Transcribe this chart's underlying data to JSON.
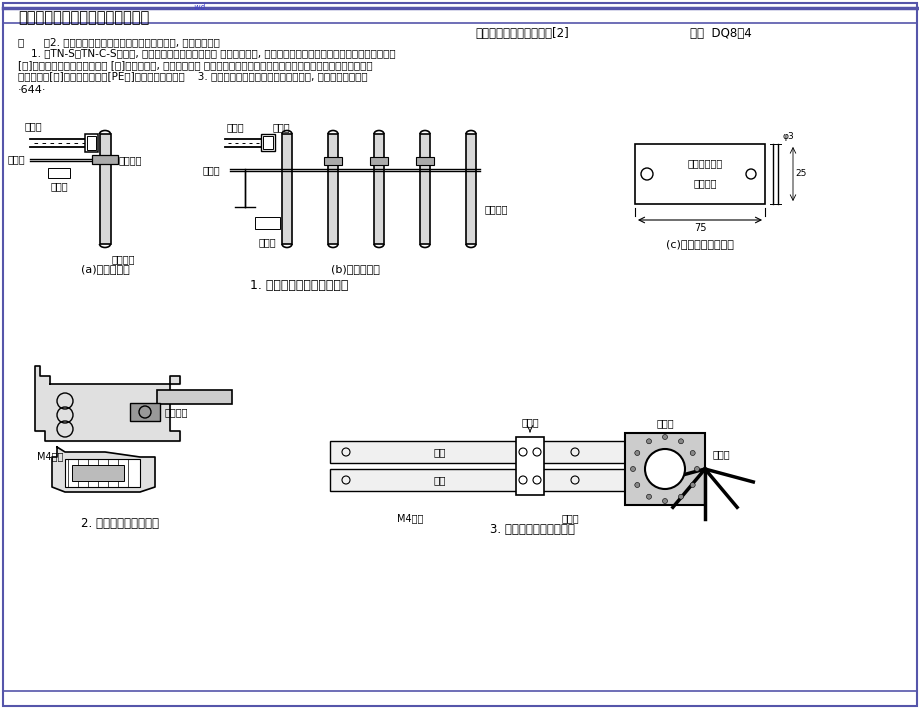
{
  "title_header": "防雷及接地装置设计施工安装图集",
  "header_link": "...wd...",
  "fig_name_label": "图名电线管接地安装方法[2]",
  "fig_number_label": "图号  DQ8－4",
  "desc1": "说      明2. 设备管线接地可采用铜带、钢带作接地线, 也可采用配管",
  "desc2": "    1. 在TN-S、TN-C-S系统中, 当金属电线保护管、金属盒 到设备管线处, 内穿接地线进展接地。可用塑料绑扎带将接地告",
  "desc3": "[箱]、塑料电线保护管、塑料盒 [箱]混合使用时, 金属电线保护 示牌安装在接地线上。接地警告性告示牌请按设计要求选用。",
  "desc4": "管和金属盒[箱]必须与保护地线[PE线]有可靠的电气连接    3. 接地警告性告示牌由橙黄色塑料制成, 上印有红色字体。",
  "desc5": "·644·",
  "caption_a": "(a)单管跨接地",
  "caption_b": "(b)多管跨接地",
  "caption_c": "(c)接地警告性告示牌",
  "caption_1": "1. 金属管线跨接地安装方法",
  "caption_2": "2. 接线盒接地安装方法",
  "caption_3": "3. 地面线槽接地安装方法",
  "lbl_dxg": "电线管",
  "lbl_jdx": "接地线",
  "lbl_gsp": "告示牌",
  "lbl_jdgk": "接地管卡",
  "lbl_sbgx": "设备管线",
  "lbl_cxz": "出线座",
  "lbl_aqjd": "安全接地终端",
  "lbl_qwzq": "切勿转去",
  "lbl_75": "75",
  "lbl_phi3": "φ3",
  "lbl_25": "25",
  "lbl_M4": "M4螺栓",
  "lbl_jdgk2": "接地管卡",
  "lbl_ljt": "连接头",
  "lbl_rd": "弱电",
  "lbl_qd": "强电",
  "lbl_fxh": "分线盒",
  "lbl_jdx2": "接地线",
  "bg_color": "#ffffff",
  "border_color": "#5555aa",
  "lc": "#000000"
}
